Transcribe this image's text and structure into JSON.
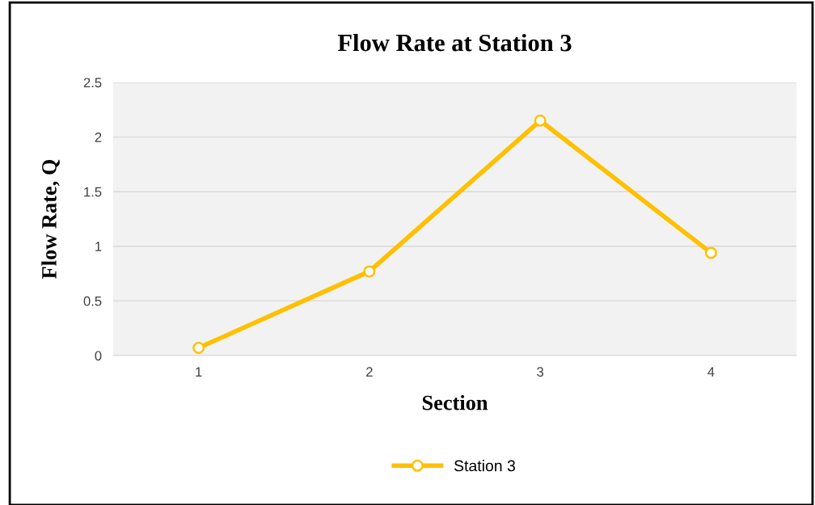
{
  "chart_data": {
    "type": "line",
    "title": "Flow Rate at Station 3",
    "xlabel": "Section",
    "ylabel": "Flow Rate, Q",
    "categories": [
      "1",
      "2",
      "3",
      "4"
    ],
    "series": [
      {
        "name": "Station 3",
        "color": "#ffc000",
        "values": [
          0.07,
          0.77,
          2.15,
          0.94
        ]
      }
    ],
    "ylim": [
      0,
      2.5
    ],
    "yticks": [
      0,
      0.5,
      1,
      1.5,
      2,
      2.5
    ],
    "grid": "y",
    "legend": "bottom",
    "marker": "circle",
    "line_style": "solid"
  }
}
